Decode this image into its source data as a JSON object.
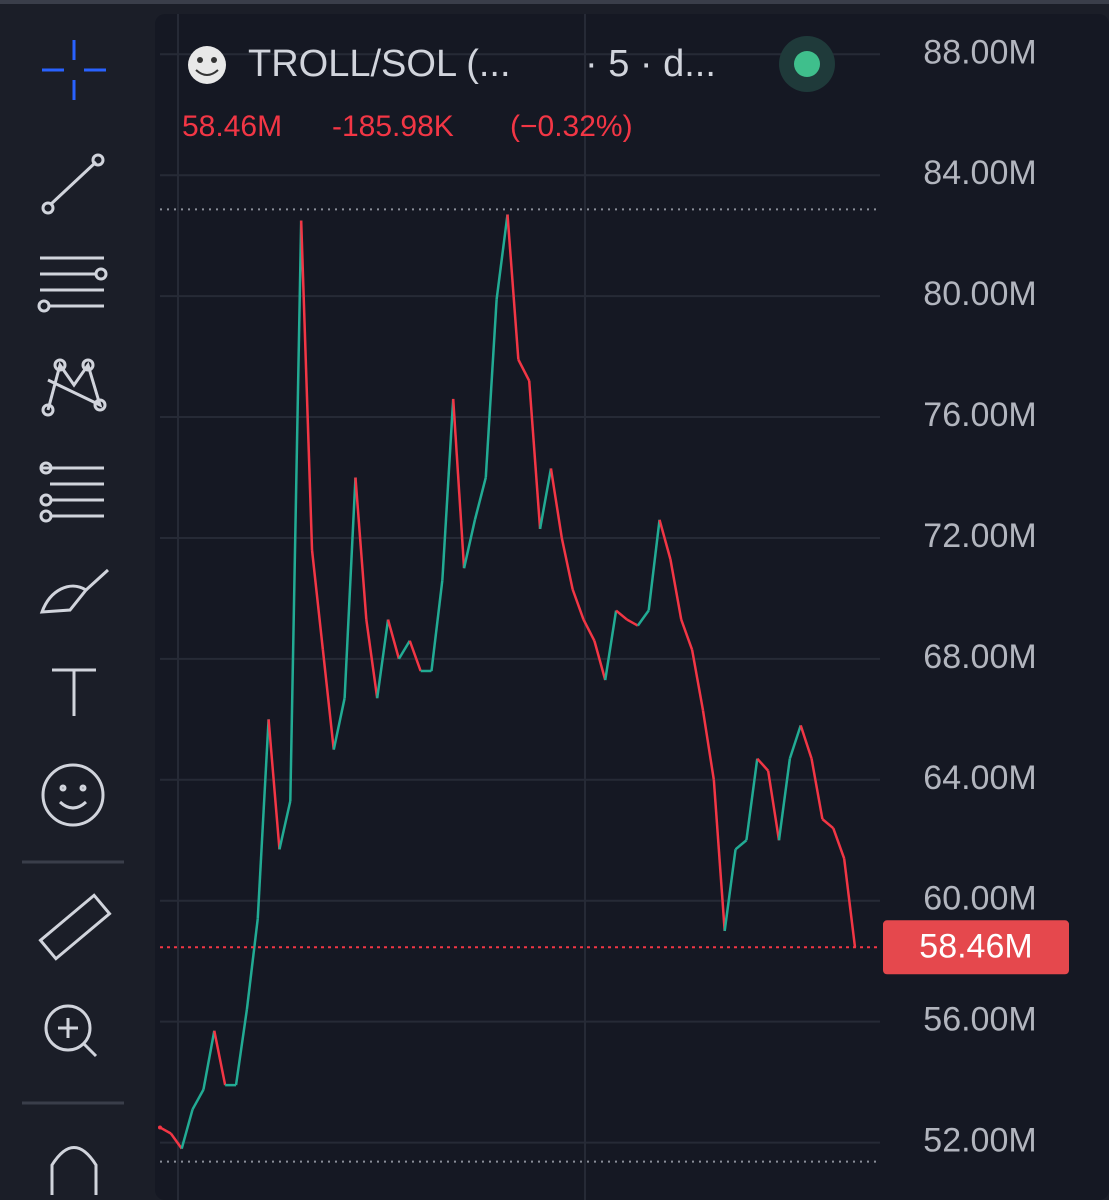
{
  "chart_data": {
    "type": "line",
    "title": "TROLL/SOL (...",
    "subtitle": "· 5 · d...",
    "last_price": 58460000,
    "last_price_label": "58.46M",
    "change_label": "-185.98K",
    "change_percent_label": "(−0.32%)",
    "header_price_label": "58.46M",
    "high_line": 82870000,
    "low_line": 51370000,
    "up_color": "#22ab94",
    "down_color": "#f23645",
    "ylim": [
      50100000,
      89300000
    ],
    "yticks": [
      {
        "value": 52000000,
        "label": "52.00M"
      },
      {
        "value": 56000000,
        "label": "56.00M"
      },
      {
        "value": 60000000,
        "label": "60.00M"
      },
      {
        "value": 64000000,
        "label": "64.00M"
      },
      {
        "value": 68000000,
        "label": "68.00M"
      },
      {
        "value": 72000000,
        "label": "72.00M"
      },
      {
        "value": 76000000,
        "label": "76.00M"
      },
      {
        "value": 80000000,
        "label": "80.00M"
      },
      {
        "value": 84000000,
        "label": "84.00M"
      },
      {
        "value": 88000000,
        "label": "88.00M"
      }
    ],
    "grid": true,
    "values": [
      52500000,
      52300000,
      51800000,
      53100000,
      53750000,
      55700000,
      53900000,
      53900000,
      56400000,
      59400000,
      66000000,
      61700000,
      63300000,
      82500000,
      71600000,
      68300000,
      65000000,
      66700000,
      74000000,
      69300000,
      66700000,
      69300000,
      68000000,
      68600000,
      67600000,
      67600000,
      70600000,
      76600000,
      71000000,
      72600000,
      74000000,
      79900000,
      82700000,
      77900000,
      77200000,
      72300000,
      74300000,
      72000000,
      70300000,
      69300000,
      68600000,
      67300000,
      69600000,
      69300000,
      69100000,
      69600000,
      72600000,
      71300000,
      69300000,
      68300000,
      66300000,
      64000000,
      59000000,
      61700000,
      62000000,
      64700000,
      64300000,
      62000000,
      64700000,
      65800000,
      64700000,
      62700000,
      62400000,
      61400000,
      58460000
    ]
  }
}
